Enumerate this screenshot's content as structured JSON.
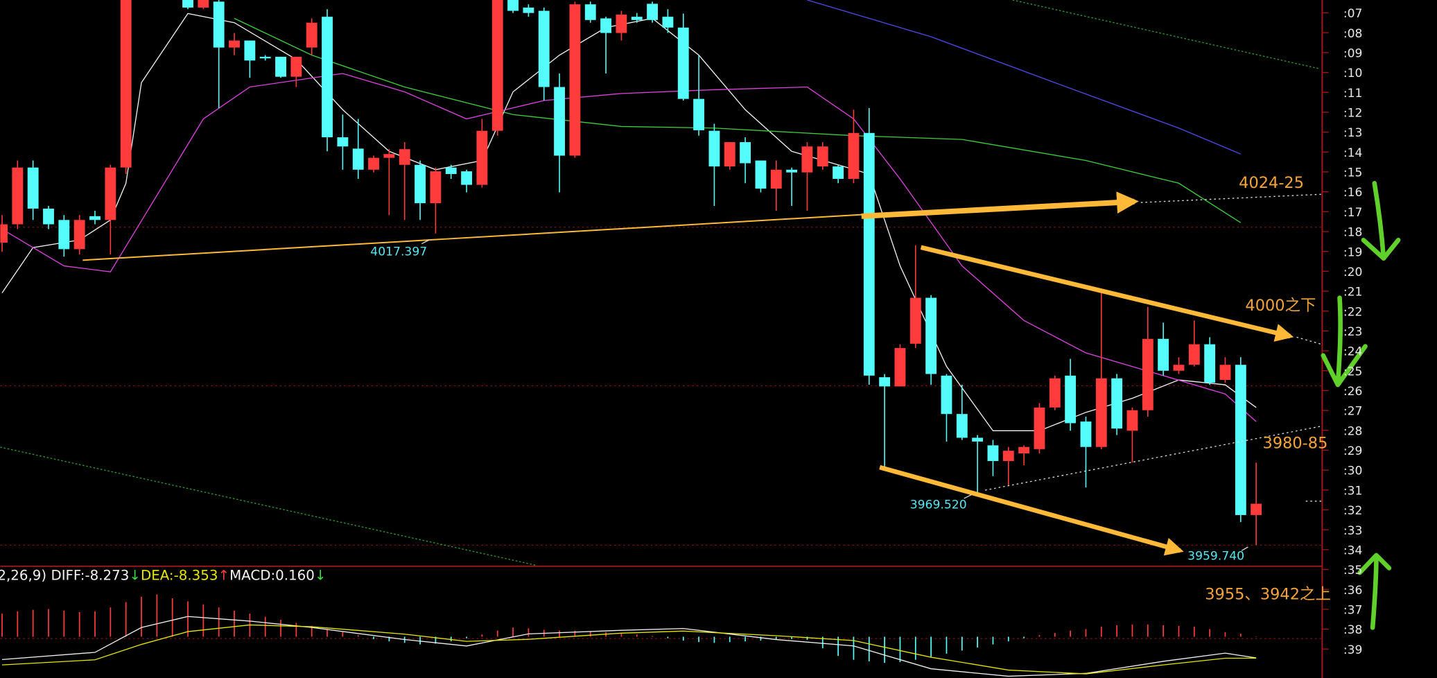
{
  "chart_data": [
    {
      "type": "candlestick",
      "up_color": "#ff3b3b",
      "down_color": "#54fcfc",
      "ylim": [
        3956,
        4060.6
      ],
      "categories": [
        null,
        null,
        null,
        null,
        null,
        null,
        null,
        null,
        null,
        null,
        null,
        null,
        null,
        null,
        null,
        null,
        null,
        null,
        null,
        null,
        null,
        null,
        null,
        null,
        null,
        null,
        null,
        null,
        null,
        null,
        null,
        null,
        null,
        null,
        null,
        null,
        null,
        null,
        null,
        null,
        null,
        null,
        null,
        null,
        null,
        null,
        null,
        null,
        null,
        null,
        null,
        null,
        null,
        null,
        null,
        null,
        null,
        null,
        null,
        null,
        null,
        null,
        null,
        null,
        null,
        null,
        null,
        null,
        null,
        null,
        null,
        null,
        null,
        null,
        null,
        null,
        null,
        null,
        null,
        null,
        null,
        null
      ],
      "open": [
        4015.7,
        4019.1,
        4029.6,
        4022.0,
        4019.9,
        4014.5,
        4020.6,
        4019.9,
        4029.6,
        null,
        null,
        null,
        4060.6,
        4059.2,
        4060.3,
        4051.8,
        4053.1,
        4050.1,
        4050.1,
        4046.4,
        4051.8,
        4057.5,
        4035.2,
        4033.1,
        4029.2,
        4031.4,
        4030.1,
        4030.1,
        4023.0,
        4029.6,
        4028.9,
        4026.4,
        4036.4,
        4060.6,
        4059.2,
        4058.6,
        4044.5,
        4031.8,
        4059.8,
        4057.2,
        4054.5,
        4057.5,
        4059.9,
        4057.5,
        4055.5,
        4042.3,
        4036.4,
        4029.8,
        4034.3,
        4030.9,
        4025.7,
        4029.2,
        4028.7,
        4029.8,
        4029.8,
        4027.5,
        4036.0,
        3990.8,
        3989.1,
        3997.0,
        4005.5,
        3991.1,
        3984.0,
        3979.6,
        3978.2,
        3975.3,
        3976.7,
        3977.5,
        3985.2,
        3991.1,
        3982.6,
        3977.9,
        3990.6,
        3980.9,
        3984.7,
        3997.9,
        3992.0,
        3993.1,
        3996.9,
        3990.3,
        3993.1,
        3965.3
      ],
      "high": [
        4020.8,
        4030.9,
        4030.9,
        4022.5,
        4020.8,
        4020.8,
        4021.6,
        4030.1,
        4066.0,
        null,
        null,
        null,
        4060.6,
        4060.6,
        4060.6,
        4054.5,
        4053.1,
        4050.4,
        4050.1,
        4050.1,
        4057.2,
        4058.9,
        4039.4,
        4038.6,
        4031.8,
        4033.0,
        4034.3,
        4030.9,
        4029.6,
        4030.1,
        4029.2,
        4038.6,
        4063.0,
        4060.6,
        4059.8,
        4059.2,
        4047.0,
        4060.3,
        4060.3,
        4057.5,
        4058.6,
        4058.2,
        4060.3,
        4058.9,
        4058.1,
        4050.4,
        4037.7,
        4034.3,
        4035.2,
        4030.9,
        4030.9,
        4029.6,
        4034.3,
        4034.3,
        4030.1,
        4040.3,
        4040.6,
        3991.4,
        3996.9,
        4015.2,
        4006.0,
        3991.4,
        3989.4,
        3980.1,
        3979.2,
        3977.9,
        3978.2,
        3986.0,
        3991.1,
        3994.2,
        3983.5,
        4006.4,
        3991.4,
        3985.2,
        4003.8,
        4000.9,
        3994.5,
        4001.3,
        3998.2,
        3994.5,
        3994.5,
        3975.0
      ],
      "low": [
        4014.0,
        4018.2,
        4019.9,
        4018.2,
        4013.1,
        4013.5,
        4019.1,
        4013.5,
        4028.4,
        null,
        null,
        null,
        4058.9,
        4058.9,
        4040.6,
        4050.4,
        4046.2,
        4049.4,
        4046.2,
        4044.5,
        4050.4,
        4032.6,
        4029.2,
        4027.5,
        4028.7,
        4020.8,
        4019.9,
        4019.9,
        4017.397,
        4027.5,
        4025.0,
        4025.9,
        4035.5,
        4058.2,
        4057.5,
        4042.0,
        4025.0,
        4031.4,
        4056.4,
        4047.0,
        4053.1,
        4056.4,
        4056.4,
        4054.5,
        4042.0,
        4035.5,
        4022.5,
        4029.2,
        4026.7,
        4025.0,
        4021.6,
        4022.5,
        4021.6,
        4029.2,
        4026.7,
        4026.7,
        3989.4,
        3974.2,
        3989.1,
        3996.2,
        3989.4,
        3978.9,
        3979.2,
        3969.52,
        3972.5,
        3970.8,
        3974.5,
        3976.7,
        3984.7,
        3980.9,
        3970.4,
        3977.5,
        3980.1,
        3975.0,
        3983.5,
        3991.1,
        3991.4,
        3992.8,
        3989.4,
        3989.8,
        3964.0,
        3959.74
      ],
      "close": [
        4019.1,
        4029.6,
        4022.0,
        4019.1,
        4014.5,
        4019.9,
        4019.9,
        4029.6,
        4065.0,
        null,
        null,
        null,
        4059.2,
        4060.6,
        4051.8,
        4053.1,
        4049.4,
        4049.8,
        4046.4,
        4050.1,
        4056.4,
        4035.2,
        4033.5,
        4029.2,
        4031.4,
        4032.1,
        4033.0,
        4023.0,
        4028.9,
        4028.4,
        4026.4,
        4036.4,
        4062.0,
        4058.6,
        4058.2,
        4044.5,
        4031.8,
        4059.8,
        4056.9,
        4054.5,
        4057.9,
        4056.9,
        4056.9,
        4055.5,
        4042.3,
        4036.5,
        4029.8,
        4034.3,
        4030.4,
        4025.7,
        4029.2,
        4028.7,
        4033.5,
        4033.5,
        4027.5,
        4036.0,
        3991.1,
        3989.1,
        3996.2,
        4005.5,
        3991.4,
        3984.0,
        3979.6,
        3978.9,
        3975.3,
        3977.2,
        3977.9,
        3985.2,
        3990.6,
        3982.3,
        3977.9,
        3990.6,
        3981.3,
        3984.7,
        3997.9,
        3992.0,
        3993.1,
        3996.9,
        3989.8,
        3993.1,
        3965.3,
        3967.4
      ],
      "overlays": [
        {
          "color": "#f2f2f2",
          "x": [
            0,
            2,
            5,
            7,
            8,
            9,
            12,
            15,
            19,
            22,
            25,
            28,
            31,
            33,
            36,
            39,
            42,
            45,
            48,
            51,
            54,
            56,
            58,
            61,
            64,
            67,
            70,
            73,
            76,
            79,
            81
          ],
          "values": [
            4006.4,
            4014.8,
            4016.2,
            4019.9,
            4026.7,
            4045.3,
            4058.1,
            4056.4,
            4049.6,
            4040.3,
            4032.6,
            4029.2,
            4030.9,
            4043.6,
            4050.4,
            4055.5,
            4057.2,
            4050.4,
            4040.3,
            4032.6,
            4030.1,
            4028.4,
            4011.4,
            3992.8,
            3980.9,
            3980.9,
            3984.3,
            3986.9,
            3990.3,
            3989.4,
            3985.2
          ]
        },
        {
          "color": "#e040e0",
          "x": [
            0,
            4,
            7,
            13,
            16,
            22,
            26,
            30,
            35,
            40,
            46,
            52,
            55,
            58,
            62,
            66,
            70,
            75,
            79,
            81
          ],
          "values": [
            4018.2,
            4011.4,
            4010.3,
            4038.6,
            4044.5,
            4047.0,
            4043.6,
            4038.6,
            4042.0,
            4043.3,
            4044.0,
            4044.5,
            4038.6,
            4027.5,
            4011.4,
            4001.3,
            3995.3,
            3991.1,
            3987.7,
            3982.6
          ]
        },
        {
          "color": "#3ccf3c",
          "x": [
            15,
            20,
            26,
            33,
            40,
            46,
            55,
            62,
            70,
            76,
            80
          ],
          "values": [
            4057.2,
            4050.4,
            4044.5,
            4039.4,
            4037.2,
            4036.9,
            4035.5,
            4034.8,
            4030.9,
            4026.7,
            4019.4
          ]
        },
        {
          "color": "#4a4ae6",
          "x": [
            52,
            60,
            68,
            76,
            80
          ],
          "values": [
            4060.6,
            4053.8,
            4045.3,
            4036.9,
            4032.1
          ]
        }
      ],
      "right_labels": [
        ":07",
        ":08",
        ":09",
        ":10",
        ":11",
        ":12",
        ":13",
        ":14",
        ":15",
        ":16",
        ":17",
        ":18",
        ":19",
        ":20",
        ":21",
        ":22",
        ":23",
        ":24",
        ":25",
        ":26",
        ":27",
        ":28",
        ":29",
        ":30",
        ":31",
        ":32",
        ":33",
        ":34",
        ":35",
        ":36",
        ":37",
        ":38",
        ":39"
      ],
      "annotations": [
        "4024-25",
        "4000之下",
        "3980-85",
        "3955、3942之上",
        "4017.397",
        "3969.520",
        "3959.740"
      ]
    },
    {
      "type": "macd",
      "header": [
        "2,26,9) DIFF:-8.273",
        "↓",
        "DEA:-8.353",
        "↑",
        "MACD:0.160",
        "↓"
      ],
      "up_color": "#ff3b3b",
      "down_color": "#54fcfc",
      "ylim": [
        -16.1,
        25
      ],
      "values": [
        9.0,
        9.9,
        10.5,
        10.8,
        10.2,
        9.6,
        9.9,
        11.4,
        13.5,
        15.6,
        16.5,
        15.0,
        13.8,
        12.6,
        11.4,
        10.2,
        9.0,
        7.8,
        6.6,
        5.4,
        4.2,
        3.0,
        1.8,
        0.6,
        -0.9,
        -1.8,
        -2.4,
        -3.0,
        -2.7,
        -1.8,
        -0.6,
        0.9,
        2.4,
        3.6,
        3.3,
        2.7,
        2.4,
        2.4,
        2.1,
        1.8,
        1.5,
        0.9,
        0.3,
        -0.6,
        -1.5,
        -2.1,
        -2.4,
        -2.1,
        -1.8,
        -1.5,
        -1.2,
        -0.9,
        -1.2,
        -4.5,
        -7.5,
        -9.0,
        -9.6,
        -10.2,
        -9.9,
        -9.0,
        -7.8,
        -6.6,
        -5.4,
        -4.2,
        -3.0,
        -1.8,
        -0.6,
        0.6,
        1.5,
        2.4,
        3.0,
        3.9,
        4.5,
        4.8,
        4.8,
        4.5,
        4.2,
        3.9,
        3.0,
        1.8,
        1.2,
        0.16
      ],
      "lines": [
        {
          "color": "#f2f2f2",
          "x": [
            0,
            6,
            9,
            12,
            16,
            20,
            26,
            30,
            34,
            40,
            44,
            50,
            55,
            60,
            65,
            70,
            75,
            79,
            81
          ],
          "values": [
            -8.9,
            -6.1,
            3.6,
            7.9,
            6.1,
            3.6,
            -1.1,
            -3.6,
            1.1,
            2.5,
            3.2,
            -1.1,
            -3.6,
            -12.5,
            -15.4,
            -14.3,
            -9.6,
            -6.4,
            -8.273
          ]
        },
        {
          "color": "#e6e600",
          "x": [
            0,
            6,
            9,
            12,
            16,
            20,
            26,
            30,
            34,
            40,
            44,
            50,
            55,
            60,
            65,
            70,
            75,
            79,
            81
          ],
          "values": [
            -11.0,
            -9.0,
            -3.0,
            2.0,
            4.6,
            3.9,
            1.0,
            -1.8,
            -1.0,
            1.4,
            2.2,
            0.4,
            -1.5,
            -8.0,
            -13.0,
            -14.5,
            -11.0,
            -8.4,
            -8.353
          ]
        }
      ]
    }
  ]
}
